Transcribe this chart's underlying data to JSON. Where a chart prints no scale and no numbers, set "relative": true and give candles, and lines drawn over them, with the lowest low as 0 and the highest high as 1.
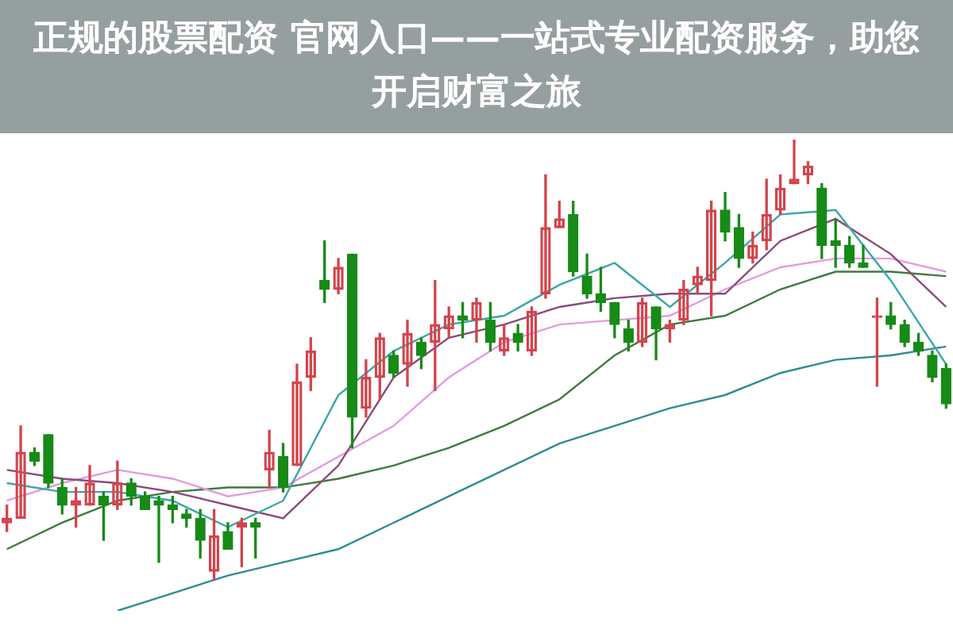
{
  "chart_data": {
    "type": "candlestick",
    "title": "正规的股票配资 官网入口——一站式专业配资服务，助您开启财富之旅",
    "relative": true,
    "categories": [
      null,
      null,
      null,
      null,
      null,
      null,
      null,
      null,
      null,
      null,
      null,
      null,
      null,
      null,
      null,
      null,
      null,
      null,
      null,
      null,
      null,
      null,
      null,
      null,
      null,
      null,
      null,
      null,
      null,
      null,
      null,
      null,
      null,
      null,
      null,
      null,
      null,
      null,
      null,
      null,
      null,
      null,
      null,
      null,
      null,
      null,
      null,
      null,
      null,
      null,
      null,
      null,
      null,
      null,
      null,
      null,
      null,
      null,
      null,
      null,
      null,
      null,
      null,
      null,
      null,
      null,
      null,
      null,
      null
    ],
    "ohlc": [
      [
        0.13,
        0.17,
        0.11,
        0.14
      ],
      [
        0.14,
        0.35,
        0.14,
        0.29
      ],
      [
        0.29,
        0.3,
        0.26,
        0.27
      ],
      [
        0.33,
        0.33,
        0.21,
        0.22
      ],
      [
        0.21,
        0.23,
        0.15,
        0.17
      ],
      [
        0.17,
        0.21,
        0.12,
        0.18
      ],
      [
        0.17,
        0.26,
        0.17,
        0.22
      ],
      [
        0.19,
        0.2,
        0.09,
        0.17
      ],
      [
        0.17,
        0.27,
        0.16,
        0.22
      ],
      [
        0.22,
        0.23,
        0.17,
        0.19
      ],
      [
        0.19,
        0.2,
        0.16,
        0.16
      ],
      [
        0.18,
        0.19,
        0.04,
        0.17
      ],
      [
        0.17,
        0.19,
        0.13,
        0.16
      ],
      [
        0.15,
        0.16,
        0.12,
        0.14
      ],
      [
        0.14,
        0.16,
        0.05,
        0.09
      ],
      [
        0.02,
        0.16,
        0,
        0.1
      ],
      [
        0.11,
        0.13,
        0.07,
        0.07
      ],
      [
        0.12,
        0.14,
        0.03,
        0.13
      ],
      [
        0.13,
        0.14,
        0.05,
        0.12
      ],
      [
        0.25,
        0.34,
        0.21,
        0.29
      ],
      [
        0.28,
        0.31,
        0.2,
        0.21
      ],
      [
        0.26,
        0.49,
        0.26,
        0.45
      ],
      [
        0.46,
        0.55,
        0.43,
        0.52
      ],
      [
        0.68,
        0.77,
        0.63,
        0.66
      ],
      [
        0.66,
        0.73,
        0.65,
        0.71
      ],
      [
        0.74,
        0.74,
        0.3,
        0.37
      ],
      [
        0.39,
        0.5,
        0.37,
        0.46
      ],
      [
        0.46,
        0.56,
        0.41,
        0.55
      ],
      [
        0.51,
        0.52,
        0.46,
        0.47
      ],
      [
        0.49,
        0.59,
        0.44,
        0.56
      ],
      [
        0.54,
        0.55,
        0.48,
        0.51
      ],
      [
        0.54,
        0.68,
        0.43,
        0.58
      ],
      [
        0.57,
        0.62,
        0.55,
        0.6
      ],
      [
        0.6,
        0.63,
        0.55,
        0.59
      ],
      [
        0.59,
        0.64,
        0.54,
        0.63
      ],
      [
        0.59,
        0.63,
        0.52,
        0.54
      ],
      [
        0.52,
        0.58,
        0.51,
        0.55
      ],
      [
        0.56,
        0.58,
        0.52,
        0.54
      ],
      [
        0.52,
        0.62,
        0.51,
        0.61
      ],
      [
        0.65,
        0.92,
        0.64,
        0.8
      ],
      [
        0.8,
        0.86,
        0.8,
        0.82
      ],
      [
        0.83,
        0.86,
        0.69,
        0.7
      ],
      [
        0.69,
        0.74,
        0.64,
        0.65
      ],
      [
        0.65,
        0.71,
        0.61,
        0.63
      ],
      [
        0.63,
        0.63,
        0.55,
        0.58
      ],
      [
        0.57,
        0.59,
        0.52,
        0.54
      ],
      [
        0.54,
        0.64,
        0.53,
        0.63
      ],
      [
        0.62,
        0.62,
        0.5,
        0.57
      ],
      [
        0.57,
        0.59,
        0.54,
        0.58
      ],
      [
        0.59,
        0.68,
        0.58,
        0.66
      ],
      [
        0.67,
        0.71,
        0.65,
        0.69
      ],
      [
        0.68,
        0.86,
        0.6,
        0.84
      ],
      [
        0.84,
        0.88,
        0.77,
        0.79
      ],
      [
        0.8,
        0.83,
        0.71,
        0.73
      ],
      [
        0.73,
        0.79,
        0.72,
        0.76
      ],
      [
        0.77,
        0.91,
        0.75,
        0.83
      ],
      [
        0.84,
        0.92,
        0.83,
        0.89
      ],
      [
        0.9,
        1,
        0.9,
        0.91
      ],
      [
        0.92,
        0.95,
        0.9,
        0.94
      ],
      [
        0.89,
        0.9,
        0.73,
        0.76
      ],
      [
        0.77,
        0.82,
        0.71,
        0.76
      ],
      [
        0.76,
        0.78,
        0.71,
        0.72
      ],
      [
        0.72,
        0.76,
        0.71,
        0.71
      ],
      [
        0.6,
        0.64,
        0.44,
        0.6
      ],
      [
        0.6,
        0.63,
        0.57,
        0.58
      ],
      [
        0.58,
        0.59,
        0.53,
        0.54
      ],
      [
        0.54,
        0.56,
        0.51,
        0.52
      ],
      [
        0.51,
        0.52,
        0.45,
        0.46
      ],
      [
        0.48,
        0.49,
        0.39,
        0.4
      ]
    ],
    "colors": [
      "#d2444c",
      "#d2444c",
      "#178a17",
      "#178a17",
      "#178a17",
      "#d2444c",
      "#d2444c",
      "#178a17",
      "#d2444c",
      "#178a17",
      "#178a17",
      "#178a17",
      "#178a17",
      "#178a17",
      "#178a17",
      "#d2444c",
      "#178a17",
      "#d2444c",
      "#178a17",
      "#d2444c",
      "#178a17",
      "#d2444c",
      "#d2444c",
      "#178a17",
      "#d2444c",
      "#178a17",
      "#d2444c",
      "#d2444c",
      "#178a17",
      "#d2444c",
      "#178a17",
      "#d2444c",
      "#d2444c",
      "#178a17",
      "#d2444c",
      "#178a17",
      "#d2444c",
      "#178a17",
      "#d2444c",
      "#d2444c",
      "#d2444c",
      "#178a17",
      "#178a17",
      "#178a17",
      "#178a17",
      "#178a17",
      "#d2444c",
      "#178a17",
      "#d2444c",
      "#d2444c",
      "#d2444c",
      "#d2444c",
      "#178a17",
      "#178a17",
      "#d2444c",
      "#d2444c",
      "#d2444c",
      "#d2444c",
      "#d2444c",
      "#178a17",
      "#178a17",
      "#178a17",
      "#178a17",
      "#d2444c",
      "#178a17",
      "#178a17",
      "#178a17",
      "#178a17",
      "#178a17"
    ],
    "series": [
      {
        "type": "line",
        "color": "#3aa6a6",
        "values": [
          0.22,
          null,
          null,
          null,
          0.2,
          null,
          null,
          null,
          0.2,
          null,
          null,
          null,
          0.18,
          null,
          null,
          null,
          0.12,
          null,
          null,
          null,
          0.18,
          null,
          null,
          null,
          0.42,
          null,
          null,
          null,
          0.52,
          null,
          null,
          null,
          0.58,
          null,
          null,
          null,
          0.6,
          null,
          null,
          null,
          0.67,
          null,
          null,
          null,
          0.72,
          null,
          null,
          null,
          0.62,
          null,
          null,
          null,
          0.72,
          null,
          null,
          null,
          0.83,
          null,
          null,
          null,
          0.84,
          null,
          null,
          null,
          0.68,
          null,
          null,
          null,
          0.49
        ]
      },
      {
        "type": "line",
        "color": "#8a4a7a",
        "values": [
          0.25,
          null,
          null,
          null,
          0.23,
          null,
          null,
          null,
          0.22,
          null,
          null,
          null,
          0.2,
          null,
          null,
          null,
          0.17,
          null,
          null,
          null,
          0.14,
          null,
          null,
          null,
          0.26,
          null,
          null,
          null,
          0.46,
          null,
          null,
          null,
          0.55,
          null,
          null,
          null,
          0.58,
          null,
          null,
          null,
          0.62,
          null,
          null,
          null,
          0.64,
          null,
          null,
          null,
          0.65,
          null,
          null,
          null,
          0.65,
          null,
          null,
          null,
          0.77,
          null,
          null,
          null,
          0.82,
          null,
          null,
          null,
          0.74,
          null,
          null,
          null,
          0.62
        ]
      },
      {
        "type": "line",
        "color": "#e39be0",
        "values": [
          0.18,
          null,
          null,
          null,
          0.22,
          null,
          null,
          null,
          0.25,
          null,
          null,
          null,
          0.23,
          null,
          null,
          null,
          0.19,
          null,
          null,
          null,
          0.21,
          null,
          null,
          null,
          0.28,
          null,
          null,
          null,
          0.35,
          null,
          null,
          null,
          0.46,
          null,
          null,
          null,
          0.54,
          null,
          null,
          null,
          0.58,
          null,
          null,
          null,
          0.59,
          null,
          null,
          null,
          0.6,
          null,
          null,
          null,
          0.66,
          null,
          null,
          null,
          0.71,
          null,
          null,
          null,
          0.73,
          null,
          null,
          null,
          0.73,
          null,
          null,
          null,
          0.7
        ]
      },
      {
        "type": "line",
        "color": "#3f7a3f",
        "values": [
          0.07,
          null,
          null,
          null,
          0.13,
          null,
          null,
          null,
          0.18,
          null,
          null,
          null,
          0.2,
          null,
          null,
          null,
          0.21,
          null,
          null,
          null,
          0.21,
          null,
          null,
          null,
          0.23,
          null,
          null,
          null,
          0.26,
          null,
          null,
          null,
          0.3,
          null,
          null,
          null,
          0.35,
          null,
          null,
          null,
          0.41,
          null,
          null,
          null,
          0.51,
          null,
          null,
          null,
          0.58,
          null,
          null,
          null,
          0.6,
          null,
          null,
          null,
          0.66,
          null,
          null,
          null,
          0.7,
          null,
          null,
          null,
          0.7,
          null,
          null,
          null,
          0.69
        ]
      },
      {
        "type": "line",
        "color": "#2f8c94",
        "values": [
          null,
          null,
          null,
          null,
          null,
          null,
          null,
          null,
          -0.07,
          null,
          null,
          null,
          -0.03,
          null,
          null,
          null,
          0.01,
          null,
          null,
          null,
          0.04,
          null,
          null,
          null,
          0.07,
          null,
          null,
          null,
          0.13,
          null,
          null,
          null,
          0.19,
          null,
          null,
          null,
          0.25,
          null,
          null,
          null,
          0.31,
          null,
          null,
          null,
          0.35,
          null,
          null,
          null,
          0.39,
          null,
          null,
          null,
          0.42,
          null,
          null,
          null,
          0.47,
          null,
          null,
          null,
          0.5,
          null,
          null,
          null,
          0.51,
          null,
          null,
          null,
          0.53
        ]
      }
    ]
  }
}
